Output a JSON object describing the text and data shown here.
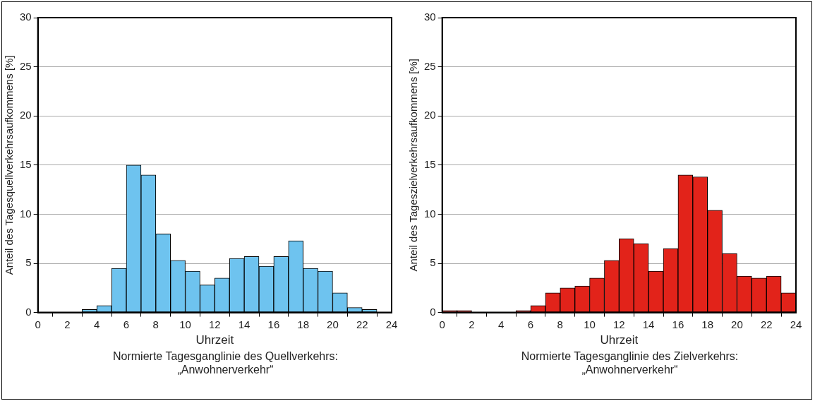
{
  "chart_data": [
    {
      "type": "histogram",
      "title": "Normierte Tagesganglinie des Quellverkehrs:\n„Anwohnerverkehr“",
      "xlabel": "Uhrzeit",
      "ylabel": "Anteil des Tagesquellverkehrsaufkommens [%]",
      "color": "#6ec3ef",
      "bins": [
        0,
        1,
        2,
        3,
        4,
        5,
        6,
        7,
        8,
        9,
        10,
        11,
        12,
        13,
        14,
        15,
        16,
        17,
        18,
        19,
        20,
        21,
        22,
        23,
        24
      ],
      "values": [
        0,
        0,
        0,
        0.3,
        0.7,
        4.5,
        15.0,
        14.0,
        8.0,
        5.3,
        4.2,
        2.8,
        3.5,
        5.5,
        5.7,
        4.7,
        5.7,
        7.3,
        4.5,
        4.2,
        2.0,
        0.5,
        0.3,
        0
      ],
      "xlim": [
        0,
        24
      ],
      "xticks": [
        0,
        2,
        4,
        6,
        8,
        10,
        12,
        14,
        16,
        18,
        20,
        22,
        24
      ],
      "ylim": [
        0,
        30
      ],
      "yticks": [
        0,
        5,
        10,
        15,
        20,
        25,
        30
      ],
      "grid": "y"
    },
    {
      "type": "histogram",
      "title": "Normierte Tagesganglinie des Zielverkehrs:\n„Anwohnerverkehr“",
      "xlabel": "Uhrzeit",
      "ylabel": "Anteil des Tageszielverkehrsaufkommens [%]",
      "color": "#e2231a",
      "bins": [
        0,
        1,
        2,
        3,
        4,
        5,
        6,
        7,
        8,
        9,
        10,
        11,
        12,
        13,
        14,
        15,
        16,
        17,
        18,
        19,
        20,
        21,
        22,
        23,
        24
      ],
      "values": [
        0.2,
        0.2,
        0,
        0,
        0,
        0.2,
        0.7,
        2.0,
        2.5,
        2.7,
        3.5,
        5.3,
        7.5,
        7.0,
        4.2,
        6.5,
        14.0,
        13.8,
        10.4,
        6.0,
        3.7,
        3.5,
        3.7,
        2.0
      ],
      "xlim": [
        0,
        24
      ],
      "xticks": [
        0,
        2,
        4,
        6,
        8,
        10,
        12,
        14,
        16,
        18,
        20,
        22,
        24
      ],
      "ylim": [
        0,
        30
      ],
      "yticks": [
        0,
        5,
        10,
        15,
        20,
        25,
        30
      ],
      "grid": "y"
    }
  ]
}
